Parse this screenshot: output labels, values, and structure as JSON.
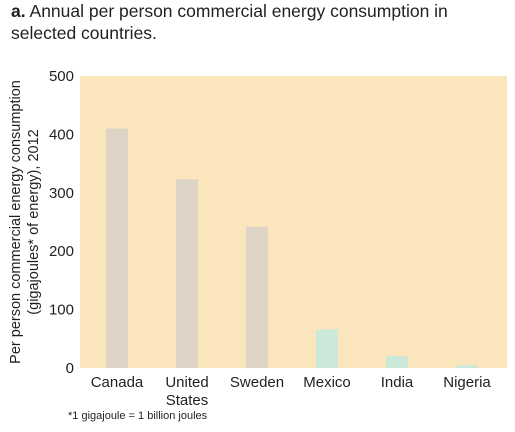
{
  "figure": {
    "label": "a.",
    "title": "Annual per person commercial energy consumption in selected countries.",
    "footnote": "*1 gigajoule = 1 billion joules"
  },
  "colors": {
    "plot_background": "#fbe5bd",
    "bar_high": "#ddd4c6",
    "bar_low": "#cce8d8",
    "text": "#231f20"
  },
  "chart_data": {
    "type": "bar",
    "title": "Annual per person commercial energy consumption in selected countries.",
    "ylabel_lines": [
      "Per person commercial energy consumption",
      "(gigajoules* of energy), 2012"
    ],
    "xlabel": "",
    "categories": [
      {
        "lines": [
          "Canada"
        ]
      },
      {
        "lines": [
          "United",
          "States"
        ]
      },
      {
        "lines": [
          "Sweden"
        ]
      },
      {
        "lines": [
          "Mexico"
        ]
      },
      {
        "lines": [
          "India"
        ]
      },
      {
        "lines": [
          "Nigeria"
        ]
      }
    ],
    "values": [
      410,
      323,
      242,
      66,
      20,
      5
    ],
    "bar_color_groups": [
      "high",
      "high",
      "high",
      "low",
      "low",
      "low"
    ],
    "ylim": [
      0,
      500
    ],
    "yticks": [
      0,
      100,
      200,
      300,
      400,
      500
    ],
    "grid": false,
    "legend": "none"
  }
}
